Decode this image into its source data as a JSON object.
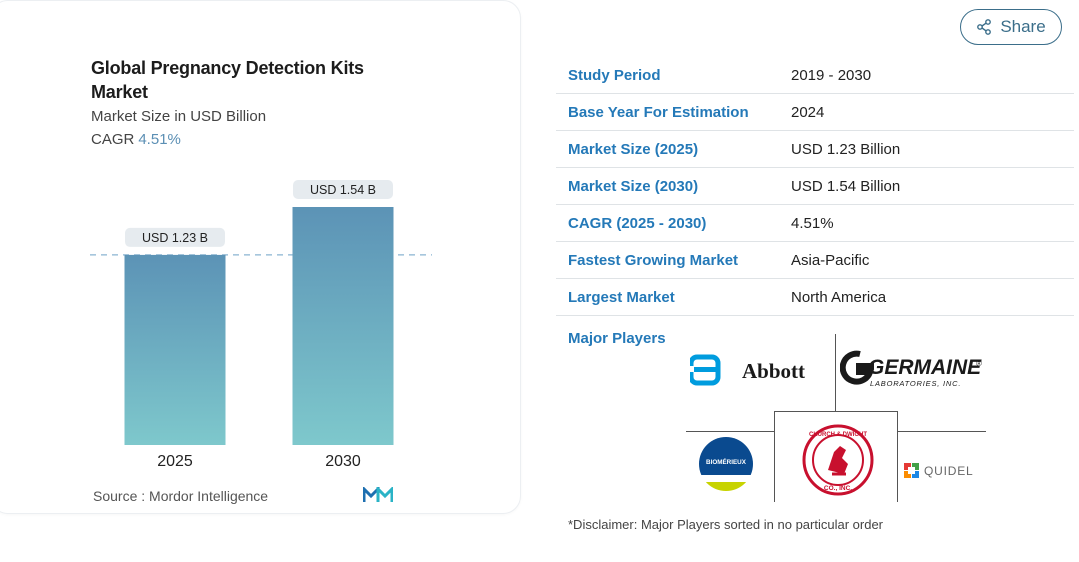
{
  "chart": {
    "title": "Global Pregnancy Detection Kits Market",
    "subtitle": "Market Size in USD Billion",
    "cagr_label": "CAGR",
    "cagr_value": "4.51%",
    "source": "Source :  Mordor Intelligence",
    "colors": {
      "bar_top": "#5c93b6",
      "bar_bottom": "#7ec8cc",
      "dash": "#8ab4d2",
      "label_bg": "#e6ebef"
    }
  },
  "chart_data": {
    "type": "bar",
    "categories": [
      "2025",
      "2030"
    ],
    "values": [
      1.23,
      1.54
    ],
    "data_labels": [
      "USD 1.23 B",
      "USD 1.54 B"
    ],
    "title": "Global Pregnancy Detection Kits Market",
    "ylabel": "Market Size in USD Billion",
    "ylim": [
      0,
      1.54
    ],
    "grid": false
  },
  "share": {
    "label": "Share",
    "icon": "share-icon"
  },
  "info": [
    {
      "key": "Study Period",
      "value": "2019 - 2030"
    },
    {
      "key": "Base Year For Estimation",
      "value": "2024"
    },
    {
      "key": "Market Size (2025)",
      "value": "USD 1.23 Billion"
    },
    {
      "key": "Market Size (2030)",
      "value": "USD 1.54 Billion"
    },
    {
      "key": "CAGR (2025 - 2030)",
      "value": "4.51%"
    },
    {
      "key": "Fastest Growing Market",
      "value": "Asia-Pacific"
    },
    {
      "key": "Largest Market",
      "value": "North America"
    }
  ],
  "players": {
    "label": "Major Players",
    "logos": [
      {
        "name": "Abbott",
        "text": "Abbott",
        "color": "#009cde"
      },
      {
        "name": "Germaine Laboratories",
        "text": "GERMAINE",
        "sub": "LABORATORIES, INC.",
        "color": "#1a1a1a"
      },
      {
        "name": "bioMérieux",
        "text": "BIOMÉRIEUX",
        "color": "#0a4a8f"
      },
      {
        "name": "Church & Dwight",
        "text": "CHURCH & DWIGHT",
        "sub": "CO., INC.",
        "color": "#c8102e"
      },
      {
        "name": "Quidel",
        "text": "QUIDEL",
        "color": "#666666"
      }
    ]
  },
  "disclaimer": "*Disclaimer: Major Players sorted in no particular order"
}
